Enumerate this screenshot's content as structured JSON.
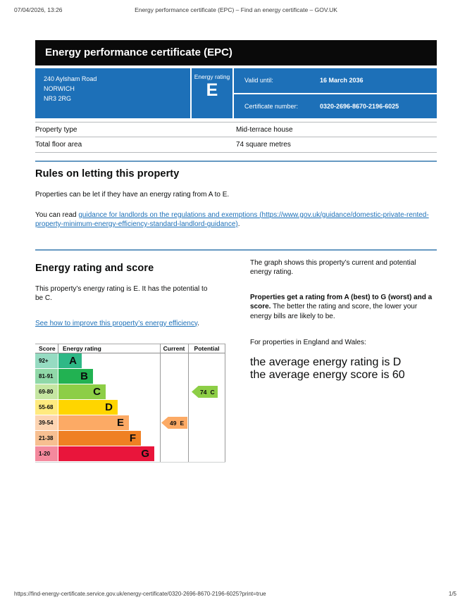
{
  "print_header": {
    "datetime": "07/04/2026, 13:26",
    "title": "Energy performance certificate (EPC) – Find an energy certificate – GOV.UK"
  },
  "print_footer": {
    "url": "https://find-energy-certificate.service.gov.uk/energy-certificate/0320-2696-8670-2196-6025?print=true",
    "page": "1/5"
  },
  "banner": {
    "title": "Energy performance certificate (EPC)"
  },
  "summary_panel": {
    "panel_color": "#1d70b8",
    "address_lines": [
      "240 Aylsham Road",
      "NORWICH",
      "NR3 2RG"
    ],
    "energy_rating_label": "Energy rating",
    "energy_rating": "E",
    "valid_until_label": "Valid until:",
    "valid_until": "16 March 2036",
    "certificate_number_label": "Certificate number:",
    "certificate_number": "0320-2696-8670-2196-6025"
  },
  "property_table": {
    "rows": [
      {
        "label": "Property type",
        "value": "Mid-terrace house"
      },
      {
        "label": "Total floor area",
        "value": "74 square metres"
      }
    ]
  },
  "rules_section": {
    "heading": "Rules on letting this property",
    "paragraph1": "Properties can be let if they have an energy rating from A to E.",
    "paragraph2_prefix": "You can read ",
    "paragraph2_link": "guidance for landlords on the regulations and exemptions (https://www.gov.uk/guidance/domestic-private-rented-property-minimum-energy-efficiency-standard-landlord-guidance)",
    "paragraph2_suffix": "."
  },
  "rating_section": {
    "heading": "Energy rating and score",
    "paragraph1": "This property’s energy rating is E. It has the potential to be C.",
    "improve_link": "See how to improve this property’s energy efficiency",
    "improve_link_suffix": ".",
    "right_paragraph1": "The graph shows this property’s current and potential energy rating.",
    "right_paragraph2_bold": "Properties get a rating from A (best) to G (worst) and a score.",
    "right_paragraph2_rest": " The better the rating and score, the lower your energy bills are likely to be.",
    "right_paragraph3": "For properties in England and Wales:",
    "average_rating_line": "the average energy rating is D",
    "average_score_line": "the average energy score is 60"
  },
  "chart_data": {
    "type": "epc-band-chart",
    "headers": {
      "score": "Score",
      "rating": "Energy rating",
      "current": "Current",
      "potential": "Potential"
    },
    "bands": [
      {
        "score_range": "92+",
        "letter": "A",
        "color": "#2eb886",
        "tint": "#96dbc2",
        "bar_pct": 23
      },
      {
        "score_range": "81-91",
        "letter": "B",
        "color": "#22b252",
        "tint": "#90d8a8",
        "bar_pct": 34
      },
      {
        "score_range": "69-80",
        "letter": "C",
        "color": "#8dce46",
        "tint": "#c6e6a2",
        "bar_pct": 46
      },
      {
        "score_range": "55-68",
        "letter": "D",
        "color": "#ffd500",
        "tint": "#ffea7f",
        "bar_pct": 58
      },
      {
        "score_range": "39-54",
        "letter": "E",
        "color": "#fcaa65",
        "tint": "#fdd4b2",
        "bar_pct": 69
      },
      {
        "score_range": "21-38",
        "letter": "F",
        "color": "#ef8023",
        "tint": "#f7bf91",
        "bar_pct": 81
      },
      {
        "score_range": "1-20",
        "letter": "G",
        "color": "#e9153b",
        "tint": "#f4899d",
        "bar_pct": 94
      }
    ],
    "current": {
      "score": "49",
      "letter": "E",
      "band_index": 4,
      "color": "#fcaa65"
    },
    "potential": {
      "score": "74",
      "letter": "C",
      "band_index": 2,
      "color": "#8dce46"
    }
  }
}
